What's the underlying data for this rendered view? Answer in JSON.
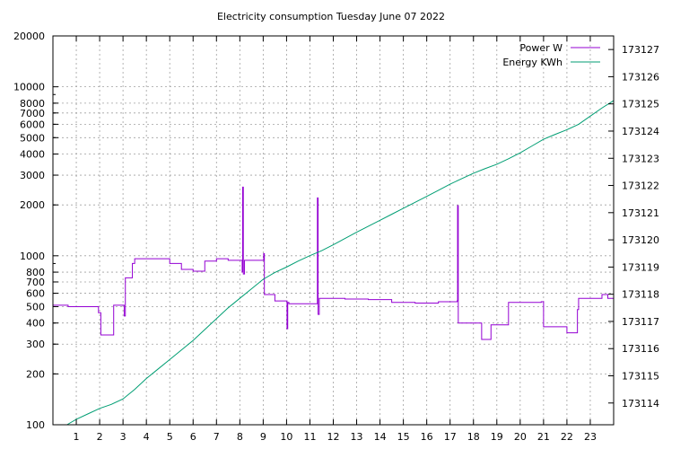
{
  "chart_data": {
    "type": "line",
    "title": "Electricity consumption Tuesday June 07 2022",
    "xlabel": "",
    "ylabel": "",
    "y2label": "",
    "xlim": [
      0,
      24
    ],
    "ylim": [
      100,
      20000
    ],
    "y_scale": "log",
    "y2lim": [
      173113.2,
      173127.5
    ],
    "grid": true,
    "legend_position": "top-right",
    "x_ticks": [
      1,
      2,
      3,
      4,
      5,
      6,
      7,
      8,
      9,
      10,
      11,
      12,
      13,
      14,
      15,
      16,
      17,
      18,
      19,
      20,
      21,
      22,
      23
    ],
    "y_ticks": [
      {
        "value": 100,
        "label": "100"
      },
      {
        "value": 200,
        "label": "200"
      },
      {
        "value": 300,
        "label": "300"
      },
      {
        "value": 400,
        "label": "400"
      },
      {
        "value": 500,
        "label": "500"
      },
      {
        "value": 600,
        "label": "600"
      },
      {
        "value": 700,
        "label": "700"
      },
      {
        "value": 800,
        "label": "800"
      },
      {
        "value": 1000,
        "label": "1000"
      },
      {
        "value": 2000,
        "label": "2000"
      },
      {
        "value": 3000,
        "label": "3000"
      },
      {
        "value": 4000,
        "label": "4000"
      },
      {
        "value": 5000,
        "label": "5000"
      },
      {
        "value": 6000,
        "label": "6000"
      },
      {
        "value": 7000,
        "label": "7000"
      },
      {
        "value": 8000,
        "label": "8000"
      },
      {
        "value": 10000,
        "label": "10000"
      },
      {
        "value": 20000,
        "label": "20000"
      }
    ],
    "y2_ticks": [
      173114,
      173115,
      173116,
      173117,
      173118,
      173119,
      173120,
      173121,
      173122,
      173123,
      173124,
      173125,
      173126,
      173127
    ],
    "series": [
      {
        "name": "Power W",
        "axis": "left",
        "color": "#9400d3",
        "x": [
          0,
          0.6,
          0.65,
          1.1,
          1.5,
          1.95,
          2.0,
          2.05,
          2.1,
          2.2,
          2.5,
          2.6,
          3.0,
          3.05,
          3.1,
          3.4,
          3.5,
          4.0,
          4.5,
          5.0,
          5.5,
          6.0,
          6.5,
          7.0,
          7.5,
          8.0,
          8.1,
          8.12,
          8.15,
          8.2,
          8.5,
          9.0,
          9.02,
          9.05,
          9.4,
          9.5,
          10.0,
          10.02,
          10.05,
          10.1,
          10.5,
          11.0,
          11.2,
          11.3,
          11.32,
          11.35,
          11.4,
          12.0,
          12.5,
          13.0,
          13.5,
          14.0,
          14.5,
          15.0,
          15.5,
          16.0,
          16.5,
          17.0,
          17.3,
          17.32,
          17.35,
          17.5,
          18.0,
          18.3,
          18.35,
          18.5,
          18.7,
          18.75,
          19.0,
          19.45,
          19.5,
          20.0,
          20.5,
          20.9,
          21.0,
          21.5,
          21.9,
          22.0,
          22.3,
          22.4,
          22.45,
          22.5,
          23.0,
          23.5,
          23.7,
          23.75,
          24.0
        ],
        "y": [
          510,
          510,
          500,
          500,
          500,
          460,
          460,
          340,
          340,
          340,
          340,
          510,
          510,
          440,
          740,
          900,
          960,
          960,
          960,
          900,
          830,
          810,
          930,
          960,
          940,
          940,
          800,
          2550,
          780,
          940,
          940,
          940,
          1030,
          590,
          590,
          540,
          540,
          370,
          530,
          520,
          520,
          520,
          520,
          520,
          2200,
          450,
          560,
          560,
          555,
          555,
          550,
          550,
          530,
          530,
          525,
          525,
          535,
          535,
          540,
          1980,
          400,
          400,
          400,
          400,
          320,
          320,
          320,
          390,
          390,
          390,
          530,
          530,
          530,
          535,
          380,
          380,
          380,
          350,
          350,
          350,
          480,
          560,
          560,
          590,
          590,
          560,
          560
        ]
      },
      {
        "name": "Energy KWh",
        "axis": "right",
        "color": "#009e73",
        "x": [
          0.6,
          1.0,
          1.5,
          2.0,
          2.5,
          3.0,
          3.5,
          4.0,
          4.5,
          5.0,
          5.5,
          6.0,
          6.5,
          7.0,
          7.5,
          8.0,
          8.5,
          9.0,
          9.5,
          10.0,
          10.5,
          11.0,
          11.5,
          12.0,
          12.5,
          13.0,
          13.5,
          14.0,
          14.5,
          15.0,
          15.5,
          16.0,
          16.5,
          17.0,
          17.5,
          18.0,
          18.5,
          19.0,
          19.5,
          20.0,
          20.5,
          21.0,
          21.5,
          22.0,
          22.5,
          23.0,
          23.5,
          24.0
        ],
        "y": [
          173113.2,
          173113.4,
          173113.6,
          173113.8,
          173113.95,
          173114.15,
          173114.5,
          173114.9,
          173115.25,
          173115.6,
          173115.95,
          173116.3,
          173116.7,
          173117.1,
          173117.5,
          173117.85,
          173118.2,
          173118.55,
          173118.8,
          173119.0,
          173119.22,
          173119.42,
          173119.6,
          173119.82,
          173120.05,
          173120.28,
          173120.5,
          173120.72,
          173120.94,
          173121.16,
          173121.38,
          173121.6,
          173121.82,
          173122.05,
          173122.25,
          173122.45,
          173122.62,
          173122.78,
          173122.98,
          173123.2,
          173123.45,
          173123.7,
          173123.88,
          173124.05,
          173124.25,
          173124.55,
          173124.85,
          173125.12
        ]
      }
    ]
  }
}
